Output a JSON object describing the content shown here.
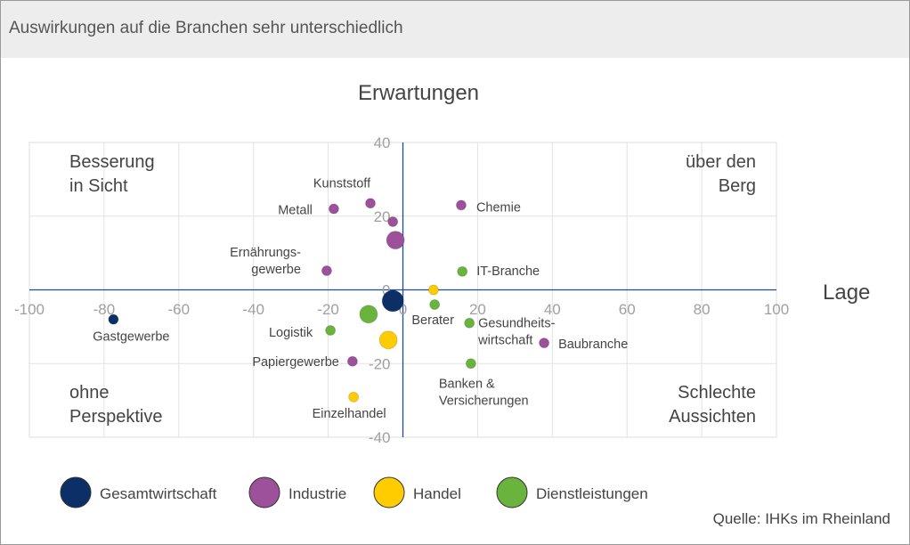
{
  "header": {
    "title": "Auswirkungen auf die Branchen sehr unterschiedlich"
  },
  "source": "Quelle: IHKs im Rheinland",
  "chart_data": {
    "type": "scatter",
    "title": "Auswirkungen auf die Branchen sehr unterschiedlich",
    "xlabel": "Lage",
    "ylabel": "Erwartungen",
    "xlim": [
      -100,
      100
    ],
    "ylim": [
      -40,
      40
    ],
    "xticks": [
      "-100",
      "-80",
      "-60",
      "-40",
      "-20",
      "0",
      "20",
      "40",
      "60",
      "80",
      "100"
    ],
    "yticks": [
      "40",
      "20",
      "0",
      "-20",
      "-40"
    ],
    "grid": true,
    "quadrants": {
      "top_left": [
        "Besserung",
        "in Sicht"
      ],
      "top_right": [
        "über den",
        "Berg"
      ],
      "bottom_left": [
        "ohne",
        "Perspektive"
      ],
      "bottom_right": [
        "Schlechte",
        "Aussichten"
      ]
    },
    "legend": {
      "placement": "bottom",
      "entries": [
        {
          "name": "Gesamtwirtschaft",
          "color": "#0b2f66"
        },
        {
          "name": "Industrie",
          "color": "#9c519a"
        },
        {
          "name": "Handel",
          "color": "#ffcc00"
        },
        {
          "name": "Dienstleistungen",
          "color": "#6ab43e"
        }
      ]
    },
    "points": [
      {
        "series": "Gesamtwirtschaft",
        "label": "",
        "x": -2.7,
        "y": -3,
        "size": "large"
      },
      {
        "series": "Gesamtwirtschaft",
        "label": "Gastgewerbe",
        "x": -77.5,
        "y": -8,
        "size": "small"
      },
      {
        "series": "Industrie",
        "label": "",
        "x": -2,
        "y": 13.5,
        "size": "medium"
      },
      {
        "series": "Industrie",
        "label": "Kunststoff",
        "x": -8.7,
        "y": 23.5,
        "size": "small"
      },
      {
        "series": "Industrie",
        "label": "Metall",
        "x": -18.5,
        "y": 22,
        "size": "small"
      },
      {
        "series": "Industrie",
        "label": "",
        "x": -2.7,
        "y": 18.5,
        "size": "small"
      },
      {
        "series": "Industrie",
        "label": "Chemie",
        "x": 15.6,
        "y": 23,
        "size": "small"
      },
      {
        "series": "Industrie",
        "label": "Ernährungs-\ngewerbe",
        "x": -20.4,
        "y": 5.2,
        "size": "small"
      },
      {
        "series": "Industrie",
        "label": "Papiergewerbe",
        "x": -13.5,
        "y": -19.4,
        "size": "small"
      },
      {
        "series": "Industrie",
        "label": "Baubranche",
        "x": 37.8,
        "y": -14.4,
        "size": "small"
      },
      {
        "series": "Handel",
        "label": "",
        "x": -3.9,
        "y": -13.6,
        "size": "medium"
      },
      {
        "series": "Handel",
        "label": "",
        "x": 8.2,
        "y": 0,
        "size": "small"
      },
      {
        "series": "Handel",
        "label": "Einzelhandel",
        "x": -13.2,
        "y": -29.1,
        "size": "small"
      },
      {
        "series": "Dienstleistungen",
        "label": "",
        "x": -9.2,
        "y": -6.6,
        "size": "medium"
      },
      {
        "series": "Dienstleistungen",
        "label": "IT-Branche",
        "x": 15.9,
        "y": 5,
        "size": "small"
      },
      {
        "series": "Dienstleistungen",
        "label": "Berater",
        "x": 8.5,
        "y": -4,
        "size": "small"
      },
      {
        "series": "Dienstleistungen",
        "label": "Gesundheits-\nwirtschaft",
        "x": 17.8,
        "y": -9,
        "size": "small"
      },
      {
        "series": "Dienstleistungen",
        "label": "Logistik",
        "x": -19.4,
        "y": -11,
        "size": "small"
      },
      {
        "series": "Dienstleistungen",
        "label": "Banken &\nVersicherungen",
        "x": 18.2,
        "y": -20,
        "size": "small"
      }
    ]
  }
}
